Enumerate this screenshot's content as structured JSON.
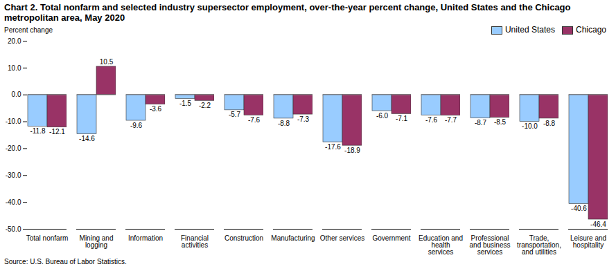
{
  "chart_data": {
    "type": "bar",
    "title": "Chart 2. Total nonfarm and selected industry supersector employment, over-the-year percent change, United States and the Chicago metropolitan area, May 2020",
    "y_label": "Percent change",
    "source": "Source: U.S. Bureau of Labor Statistics.",
    "categories": [
      "Total nonfarm",
      "Mining and logging",
      "Information",
      "Financial activities",
      "Construction",
      "Manufacturing",
      "Other services",
      "Government",
      "Education and health services",
      "Professional and business services",
      "Trade, transportation, and utilities",
      "Leisure and hospitality"
    ],
    "series": [
      {
        "name": "United States",
        "color": "#99ccff",
        "values": [
          -11.8,
          -14.6,
          -9.6,
          -1.5,
          -5.7,
          -8.8,
          -17.6,
          -6.0,
          -7.6,
          -8.7,
          -10.0,
          -40.6
        ],
        "value_labels": [
          "-11.8",
          "-14.6",
          "-9.6",
          "-1.5",
          "-5.7",
          "-8.8",
          "-17.6",
          "-6.0",
          "-7.6",
          "-8.7",
          "-10.0",
          "-40.6"
        ]
      },
      {
        "name": "Chicago",
        "color": "#993366",
        "values": [
          -12.1,
          10.5,
          -3.6,
          -2.2,
          -7.6,
          -7.3,
          -18.9,
          -7.1,
          -7.7,
          -8.5,
          -8.8,
          -46.4
        ],
        "value_labels": [
          "-12.1",
          "10.5",
          "-3.6",
          "-2.2",
          "-7.6",
          "-7.3",
          "-18.9",
          "-7.1",
          "-7.7",
          "-8.5",
          "-8.8",
          "-46.4"
        ]
      }
    ],
    "ylim": [
      -50,
      20
    ],
    "yticks": [
      {
        "value": -50,
        "label": "-50.0"
      },
      {
        "value": -40,
        "label": "-40.0"
      },
      {
        "value": -30,
        "label": "-30.0"
      },
      {
        "value": -20,
        "label": "-20.0"
      },
      {
        "value": -10,
        "label": "-10.0"
      },
      {
        "value": 0,
        "label": "0.0"
      },
      {
        "value": 10,
        "label": "10.0"
      },
      {
        "value": 20,
        "label": "20.0"
      }
    ],
    "grid": false,
    "legend": "top-right",
    "data_labels": true
  }
}
